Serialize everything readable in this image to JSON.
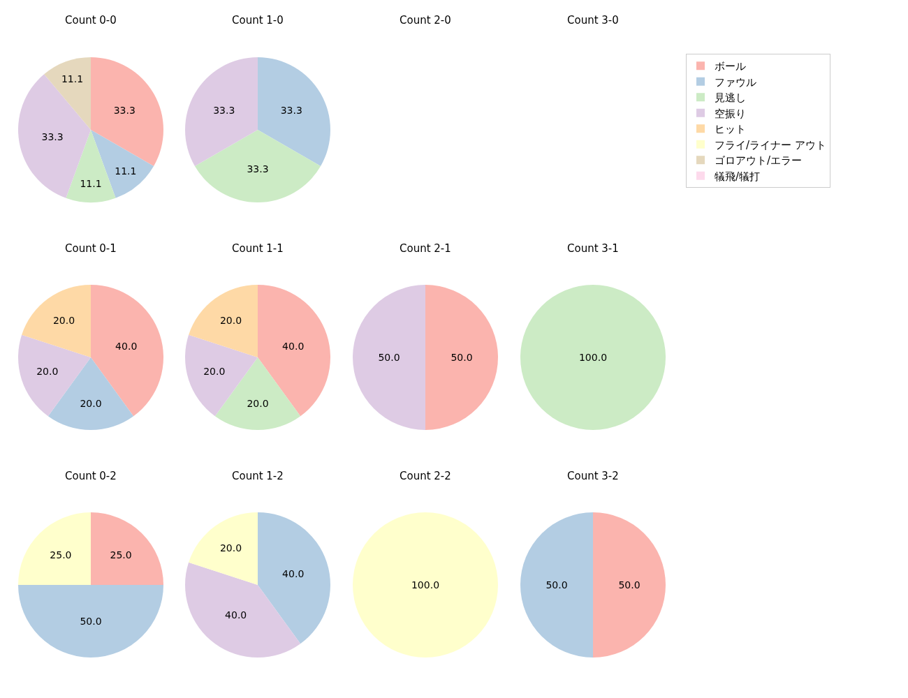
{
  "chart_data": [
    {
      "type": "pie",
      "title": "Count 0-0",
      "legend": "top right",
      "categories": [
        "ボール",
        "ファウル",
        "見逃し",
        "空振り",
        "ヒット",
        "フライ/ライナー アウト",
        "ゴロアウト/エラー",
        "犠飛/犠打"
      ],
      "values": [
        33.3,
        11.1,
        11.1,
        33.3,
        0,
        0,
        11.1,
        0
      ],
      "value_labels": [
        "33.3",
        "11.1",
        "11.1",
        "33.3",
        null,
        null,
        "11.1",
        null
      ],
      "colors": [
        "#fbb4ae",
        "#b3cde3",
        "#ccebc5",
        "#decbe4",
        "#fed9a6",
        "#ffffcc",
        "#e5d8bd",
        "#fddaec"
      ]
    },
    {
      "type": "pie",
      "title": "Count 1-0",
      "categories": [
        null,
        null,
        null
      ],
      "values": [
        33.3,
        33.3,
        33.3
      ],
      "value_labels": [
        "33.3",
        "33.3",
        "33.3"
      ],
      "colors": [
        "#b3cde3",
        "#ccebc5",
        "#decbe4"
      ]
    },
    {
      "type": "pie",
      "title": "Count 2-0"
    },
    {
      "type": "pie",
      "title": "Count 3-0"
    },
    {
      "type": "pie",
      "title": "Count 0-1",
      "categories": [
        null,
        null,
        null,
        null
      ],
      "values": [
        40,
        20,
        20,
        20
      ],
      "value_labels": [
        "40.0",
        "20.0",
        "20.0",
        "20.0"
      ],
      "colors": [
        "#fbb4ae",
        "#b3cde3",
        "#decbe4",
        "#fed9a6"
      ]
    },
    {
      "type": "pie",
      "title": "Count 1-1",
      "categories": [
        null,
        null,
        null,
        null
      ],
      "values": [
        40,
        20,
        20,
        20
      ],
      "value_labels": [
        "40.0",
        "20.0",
        "20.0",
        "20.0"
      ],
      "colors": [
        "#fbb4ae",
        "#ccebc5",
        "#decbe4",
        "#fed9a6"
      ]
    },
    {
      "type": "pie",
      "title": "Count 2-1",
      "categories": [
        null,
        null
      ],
      "values": [
        50,
        50
      ],
      "value_labels": [
        "50.0",
        "50.0"
      ],
      "colors": [
        "#fbb4ae",
        "#decbe4"
      ]
    },
    {
      "type": "pie",
      "title": "Count 3-1",
      "categories": [
        null
      ],
      "values": [
        100
      ],
      "value_labels": [
        "100.0"
      ],
      "colors": [
        "#ccebc5"
      ]
    },
    {
      "type": "pie",
      "title": "Count 0-2",
      "categories": [
        null,
        null,
        null
      ],
      "values": [
        25,
        50,
        25
      ],
      "value_labels": [
        "25.0",
        "50.0",
        "25.0"
      ],
      "colors": [
        "#fbb4ae",
        "#b3cde3",
        "#ffffcc"
      ]
    },
    {
      "type": "pie",
      "title": "Count 1-2",
      "categories": [
        null,
        null,
        null
      ],
      "values": [
        40,
        40,
        20
      ],
      "value_labels": [
        "40.0",
        "40.0",
        "20.0"
      ],
      "colors": [
        "#b3cde3",
        "#decbe4",
        "#ffffcc"
      ]
    },
    {
      "type": "pie",
      "title": "Count 2-2",
      "categories": [
        null
      ],
      "values": [
        100
      ],
      "value_labels": [
        "100.0"
      ],
      "colors": [
        "#ffffcc"
      ]
    },
    {
      "type": "pie",
      "title": "Count 3-2",
      "categories": [
        null,
        null
      ],
      "values": [
        50,
        50
      ],
      "value_labels": [
        "50.0",
        "50.0"
      ],
      "colors": [
        "#fbb4ae",
        "#b3cde3"
      ]
    }
  ]
}
